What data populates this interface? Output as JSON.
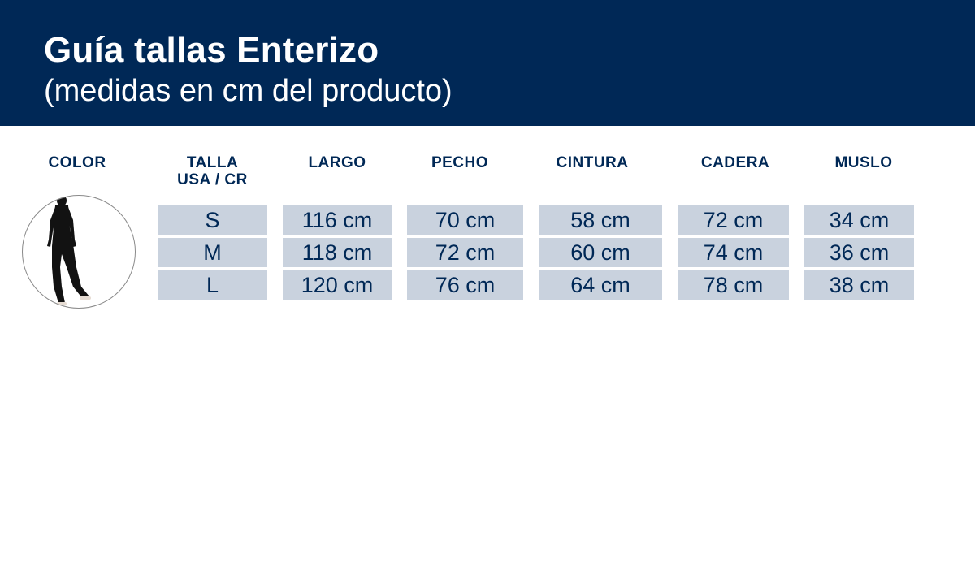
{
  "header": {
    "title": "Guía tallas Enterizo",
    "subtitle": "(medidas en cm del producto)"
  },
  "colors": {
    "banner": "#002856",
    "cell_bg": "#c9d2de",
    "text": "#002856"
  },
  "table": {
    "columns": {
      "color": "COLOR",
      "talla_1": "TALLA",
      "talla_2": "USA / CR",
      "largo": "LARGO",
      "pecho": "PECHO",
      "cintura": "CINTURA",
      "cadera": "CADERA",
      "muslo": "MUSLO"
    },
    "rows": [
      {
        "talla": "S",
        "largo": "116 cm",
        "pecho": "70 cm",
        "cintura": "58 cm",
        "cadera": "72 cm",
        "muslo": "34 cm"
      },
      {
        "talla": "M",
        "largo": "118 cm",
        "pecho": "72 cm",
        "cintura": "60 cm",
        "cadera": "74 cm",
        "muslo": "36 cm"
      },
      {
        "talla": "L",
        "largo": "120 cm",
        "pecho": "76 cm",
        "cintura": "64 cm",
        "cadera": "78 cm",
        "muslo": "38 cm"
      }
    ]
  },
  "product_image": {
    "icon": "black-jumpsuit-model-photo"
  }
}
